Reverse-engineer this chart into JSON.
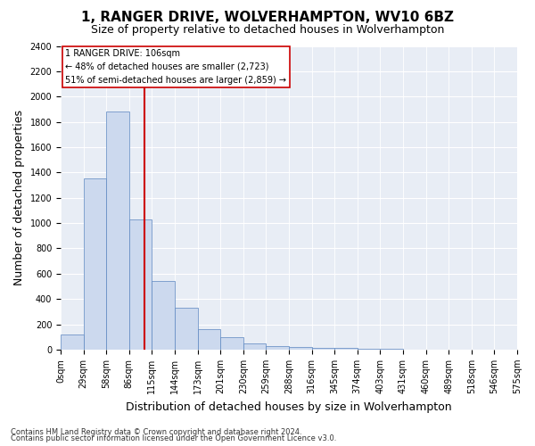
{
  "title": "1, RANGER DRIVE, WOLVERHAMPTON, WV10 6BZ",
  "subtitle": "Size of property relative to detached houses in Wolverhampton",
  "xlabel": "Distribution of detached houses by size in Wolverhampton",
  "ylabel": "Number of detached properties",
  "footnote1": "Contains HM Land Registry data © Crown copyright and database right 2024.",
  "footnote2": "Contains public sector information licensed under the Open Government Licence v3.0.",
  "bar_color": "#ccd9ee",
  "bar_edge_color": "#5b86c0",
  "vline_color": "#cc0000",
  "annotation_title": "1 RANGER DRIVE: 106sqm",
  "annotation_line1": "← 48% of detached houses are smaller (2,723)",
  "annotation_line2": "51% of semi-detached houses are larger (2,859) →",
  "bin_edges": [
    0,
    29,
    58,
    86,
    115,
    144,
    173,
    201,
    230,
    259,
    288,
    316,
    345,
    374,
    403,
    431,
    460,
    489,
    518,
    546,
    575
  ],
  "bin_labels": [
    "0sqm",
    "29sqm",
    "58sqm",
    "86sqm",
    "115sqm",
    "144sqm",
    "173sqm",
    "201sqm",
    "230sqm",
    "259sqm",
    "288sqm",
    "316sqm",
    "345sqm",
    "374sqm",
    "403sqm",
    "431sqm",
    "460sqm",
    "489sqm",
    "518sqm",
    "546sqm",
    "575sqm"
  ],
  "counts": [
    120,
    1350,
    1880,
    1030,
    540,
    330,
    160,
    95,
    50,
    28,
    20,
    15,
    12,
    8,
    5,
    3,
    2,
    0,
    1,
    0
  ],
  "ylim": [
    0,
    2400
  ],
  "yticks": [
    0,
    200,
    400,
    600,
    800,
    1000,
    1200,
    1400,
    1600,
    1800,
    2000,
    2200,
    2400
  ],
  "plot_bg_color": "#e8edf5",
  "title_fontsize": 11,
  "subtitle_fontsize": 9,
  "axis_label_fontsize": 9,
  "tick_fontsize": 7,
  "footnote_fontsize": 6
}
